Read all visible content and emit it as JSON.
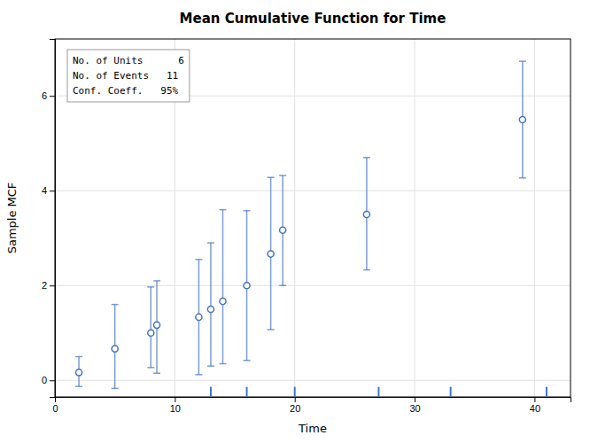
{
  "chart_data": {
    "type": "scatter",
    "title": "Mean Cumulative Function for Time",
    "x_label": "Time",
    "y_label": "Sample MCF",
    "xlim": [
      0,
      43
    ],
    "ylim": [
      -0.35,
      7.2
    ],
    "xticks": [
      0,
      10,
      20,
      30,
      40
    ],
    "yticks": [
      0,
      2,
      4,
      6
    ],
    "grid": true,
    "marker": "circle",
    "series": [
      {
        "color": "#4472C4",
        "x": [
          2.0,
          5.0,
          8.0,
          8.5,
          12.0,
          13.0,
          14.0,
          16.0,
          18.0,
          19.0,
          26.0,
          39.0
        ],
        "values": [
          0.167,
          0.667,
          1.0,
          1.167,
          1.333,
          1.5,
          1.667,
          2.0,
          2.667,
          3.167,
          3.5,
          5.5
        ],
        "lower": [
          -0.13,
          -0.17,
          0.27,
          0.15,
          0.12,
          0.3,
          0.35,
          0.42,
          1.07,
          2.0,
          2.33,
          4.27
        ],
        "upper": [
          0.5,
          1.6,
          1.97,
          2.1,
          2.55,
          2.9,
          3.6,
          3.58,
          4.28,
          4.32,
          4.7,
          6.73
        ]
      }
    ],
    "census_ticks": [
      13,
      16,
      20,
      27,
      33,
      41
    ],
    "annotations": [
      "No. of Units      6",
      "No. of Events   11",
      "Conf. Coeff.   95%"
    ]
  }
}
